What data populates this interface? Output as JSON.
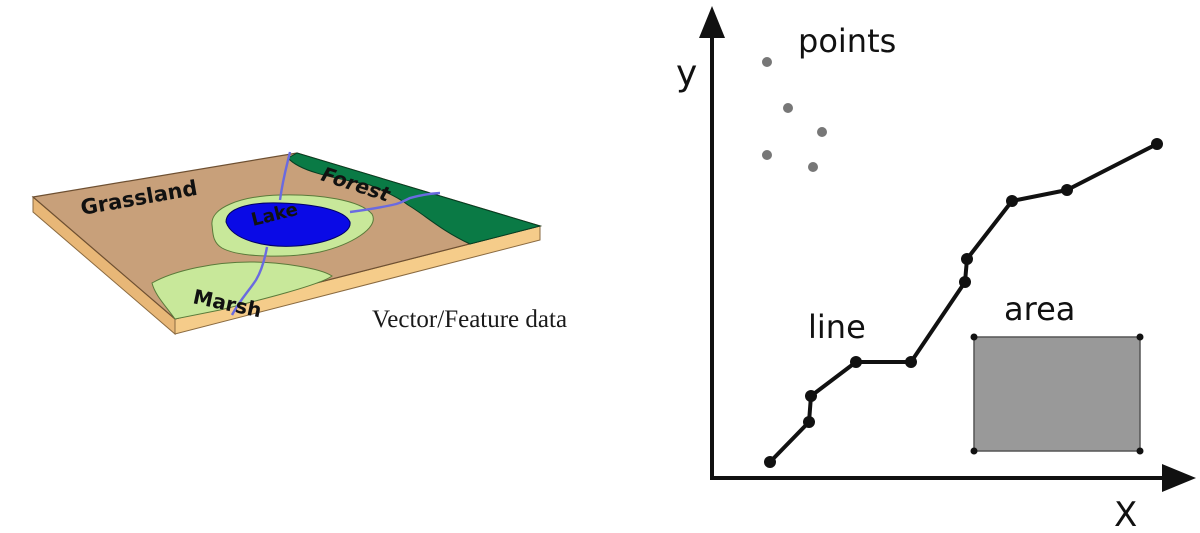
{
  "map": {
    "labels": {
      "grassland": "Grassland",
      "forest": "Forest",
      "lake": "Lake",
      "marsh": "Marsh"
    },
    "colors": {
      "grassland": "#c8a07a",
      "forest": "#0a7a45",
      "lake": "#0a0ae6",
      "marsh": "#c8e89a",
      "river": "#6a6ae0",
      "base_edge": "#f5cc8a"
    }
  },
  "caption": "Vector/Feature data",
  "plot": {
    "axis_x_label": "X",
    "axis_y_label": "y",
    "points_label": "points",
    "line_label": "line",
    "area_label": "area",
    "colors": {
      "points": "#777777",
      "line": "#111111",
      "area": "#999999"
    }
  }
}
